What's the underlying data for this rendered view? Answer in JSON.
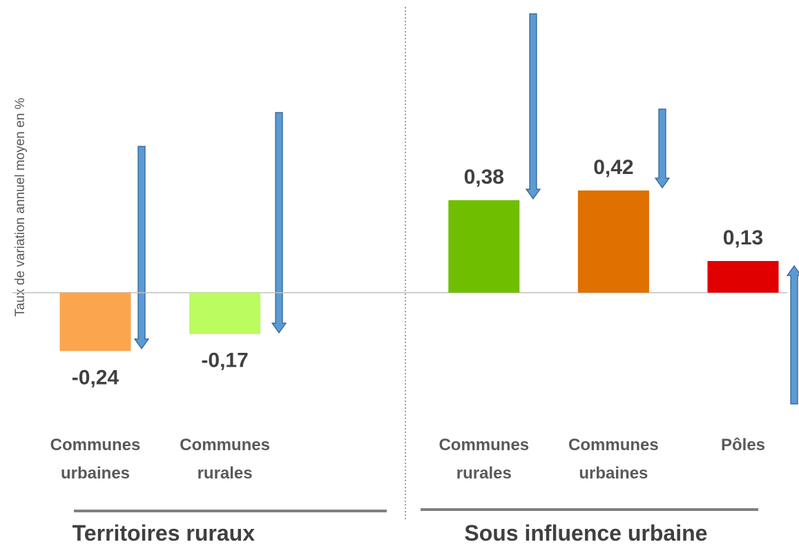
{
  "chart_data": {
    "type": "bar",
    "y_label": "Taux de variation annuel moyen en %",
    "ylim": [
      -0.5,
      1.2
    ],
    "groups": [
      {
        "name": "Territoires ruraux",
        "categories": [
          "Communes urbaines",
          "Communes rurales"
        ],
        "values": [
          -0.24,
          -0.17
        ],
        "value_labels": [
          "-0,24",
          "-0,17"
        ],
        "colors": [
          "#fba54e",
          "#bbfc5f"
        ]
      },
      {
        "name": "Sous influence urbaine",
        "categories": [
          "Communes rurales",
          "Communes urbaines",
          "Pôles"
        ],
        "values": [
          0.38,
          0.42,
          0.13
        ],
        "value_labels": [
          "0,38",
          "0,42",
          "0,13"
        ],
        "colors": [
          "#6fbf00",
          "#e07000",
          "#e00000"
        ]
      }
    ]
  }
}
